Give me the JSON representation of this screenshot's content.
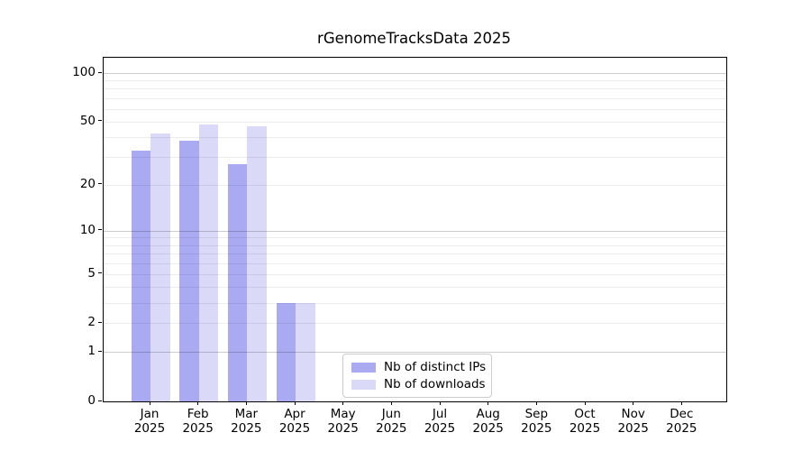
{
  "chart_data": {
    "type": "bar",
    "title": "rGenomeTracksData 2025",
    "categories": [
      "Jan",
      "Feb",
      "Mar",
      "Apr",
      "May",
      "Jun",
      "Jul",
      "Aug",
      "Sep",
      "Oct",
      "Nov",
      "Dec"
    ],
    "x_year_label": "2025",
    "series": [
      {
        "name": "Nb of distinct IPs",
        "color": "#a9aaf2",
        "values": [
          33,
          38,
          27,
          3,
          null,
          null,
          null,
          null,
          null,
          null,
          null,
          null
        ]
      },
      {
        "name": "Nb of downloads",
        "color": "#dadaf8",
        "values": [
          42,
          48,
          47,
          3,
          null,
          null,
          null,
          null,
          null,
          null,
          null,
          null
        ]
      }
    ],
    "yscale": "log1p",
    "y_ticks": [
      0,
      1,
      2,
      5,
      10,
      20,
      50,
      100
    ],
    "minor_gridline_values": [
      2,
      3,
      4,
      5,
      6,
      7,
      8,
      9,
      20,
      30,
      40,
      50,
      60,
      70,
      80,
      90
    ],
    "major_gridline_values": [
      1,
      10,
      100
    ],
    "ylim": [
      0,
      125
    ],
    "grid": true,
    "legend_position": "lower center",
    "xlabel": "",
    "ylabel": ""
  },
  "colors": {
    "background": "#ffffff",
    "axis": "#000000",
    "grid_minor": "#ededed",
    "grid_major": "#cccccc",
    "legend_border": "#cccccc",
    "text": "#000000"
  }
}
